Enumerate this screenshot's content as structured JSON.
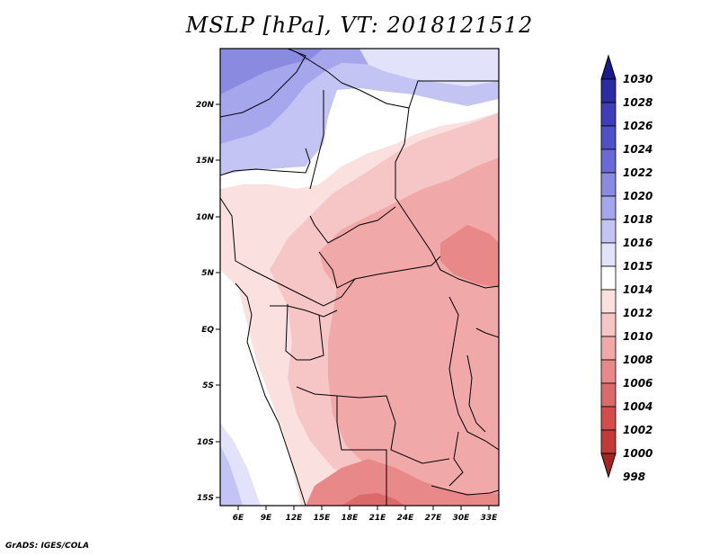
{
  "title": "MSLP [hPa], VT: 2018121512",
  "credit": "GrADS: IGES/COLA",
  "map": {
    "lon_labels": [
      "6E",
      "9E",
      "12E",
      "15E",
      "18E",
      "21E",
      "24E",
      "27E",
      "30E",
      "33E"
    ],
    "lat_labels": [
      "20N",
      "15N",
      "10N",
      "5N",
      "EQ",
      "5S",
      "10S",
      "15S"
    ]
  },
  "colorbar": {
    "labels": [
      "1030",
      "1028",
      "1026",
      "1024",
      "1022",
      "1020",
      "1018",
      "1016",
      "1015",
      "1014",
      "1012",
      "1010",
      "1008",
      "1006",
      "1004",
      "1002",
      "1000",
      "998"
    ],
    "colors": {
      "top_arrow": "#1a1a8c",
      "b1028": "#2b2ba3",
      "b1026": "#3e3eb8",
      "b1024": "#5050c8",
      "b1022": "#6a6ad6",
      "b1020": "#8a8ae0",
      "b1018": "#a6a6ec",
      "b1016": "#c4c4f4",
      "b1015": "#e2e2fa",
      "b1014": "#ffffff",
      "b1012": "#fbe0e0",
      "b1010": "#f6c6c6",
      "b1008": "#f0a8a8",
      "b1006": "#e88888",
      "b1004": "#dc6a6a",
      "b1002": "#d44c4c",
      "b1000": "#c43838",
      "bottom_arrow": "#a82424"
    }
  }
}
